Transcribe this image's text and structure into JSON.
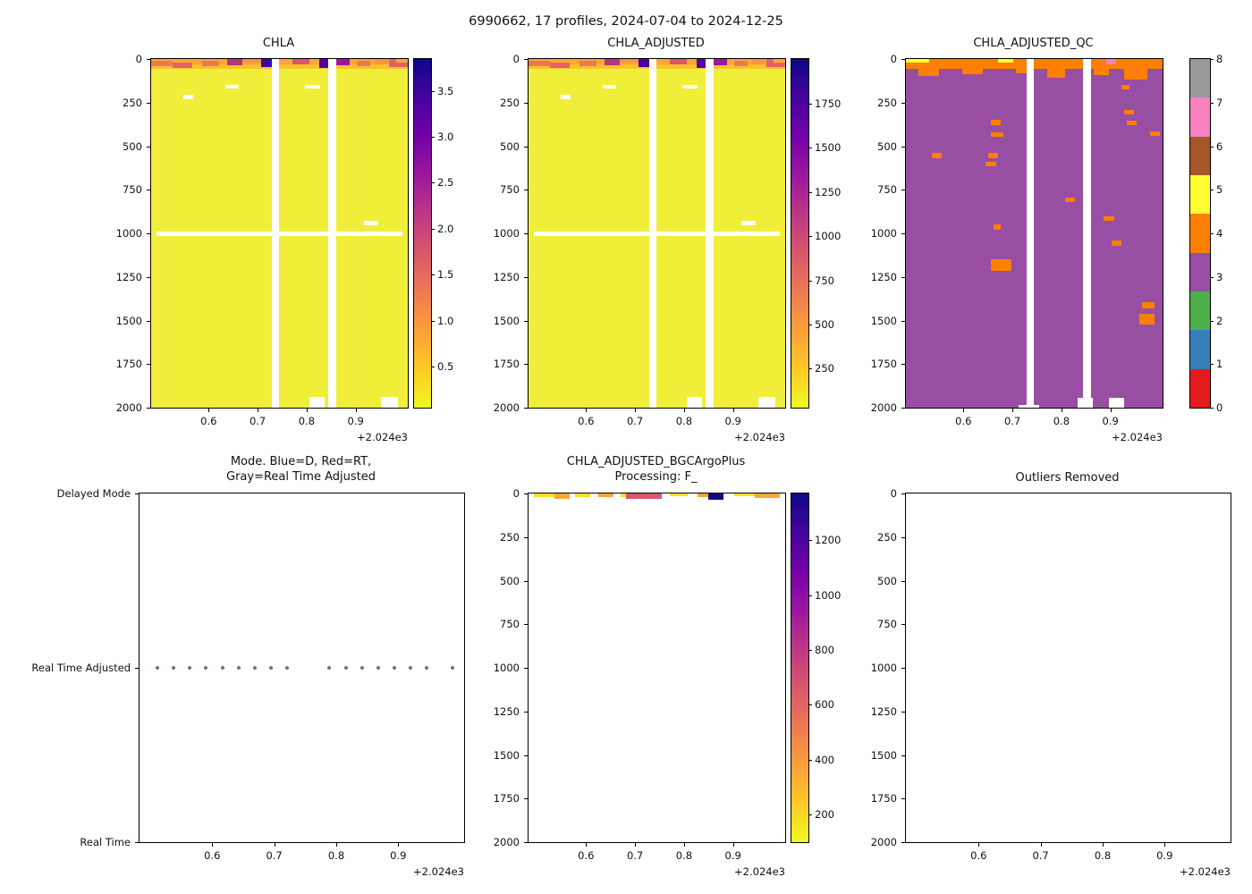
{
  "suptitle": "6990662, 17 profiles, 2024-07-04 to 2024-12-25",
  "chart_data": [
    {
      "id": "CHLA",
      "type": "heatmap",
      "title": "CHLA",
      "x_offset": "+2.024e3",
      "ylim": [
        0,
        2000
      ],
      "xlim_decimal_year": [
        2024.48,
        2025.01
      ],
      "x_ticks": [
        {
          "label": "0.6",
          "f": 0.224
        },
        {
          "label": "0.7",
          "f": 0.415
        },
        {
          "label": "0.8",
          "f": 0.606
        },
        {
          "label": "0.9",
          "f": 0.797
        }
      ],
      "y_ticks": [
        {
          "label": "0",
          "f": 0
        },
        {
          "label": "250",
          "f": 0.125
        },
        {
          "label": "500",
          "f": 0.25
        },
        {
          "label": "750",
          "f": 0.375
        },
        {
          "label": "1000",
          "f": 0.5
        },
        {
          "label": "1250",
          "f": 0.625
        },
        {
          "label": "1500",
          "f": 0.75
        },
        {
          "label": "1750",
          "f": 0.875
        },
        {
          "label": "2000",
          "f": 1
        }
      ],
      "colorbar": {
        "type": "gradient",
        "cmap": "plasma_r",
        "vmin": 0.05,
        "vmax": 3.85,
        "stops": [
          "#f0f921",
          "#fdca26",
          "#fb9f3a",
          "#ed7953",
          "#d8576b",
          "#bd3786",
          "#9c179e",
          "#7201a8",
          "#46039f",
          "#0d0887"
        ],
        "ticks": [
          {
            "label": "0.5",
            "f": 0.118
          },
          {
            "label": "1.0",
            "f": 0.25
          },
          {
            "label": "1.5",
            "f": 0.382
          },
          {
            "label": "2.0",
            "f": 0.513
          },
          {
            "label": "2.5",
            "f": 0.645
          },
          {
            "label": "3.0",
            "f": 0.776
          },
          {
            "label": "3.5",
            "f": 0.908
          }
        ]
      },
      "cells": [
        {
          "x0": 0,
          "x1": 1,
          "d0": 0,
          "d1": 2000,
          "c": "#f0ee38"
        },
        {
          "x0": 0,
          "x1": 1,
          "d0": 0,
          "d1": 28,
          "c": "#fca636"
        },
        {
          "x0": 0,
          "x1": 1,
          "d0": 28,
          "d1": 55,
          "c": "#fbc12c"
        },
        {
          "x0": 0.0,
          "x1": 0.085,
          "d0": 12,
          "d1": 42,
          "c": "#ed7953"
        },
        {
          "x0": 0.085,
          "x1": 0.16,
          "d0": 18,
          "d1": 52,
          "c": "#e16462"
        },
        {
          "x0": 0.2,
          "x1": 0.265,
          "d0": 8,
          "d1": 42,
          "c": "#ed7953"
        },
        {
          "x0": 0.295,
          "x1": 0.355,
          "d0": 0,
          "d1": 38,
          "c": "#b5367a"
        },
        {
          "x0": 0.355,
          "x1": 0.44,
          "d0": 0,
          "d1": 22,
          "c": "#f89441"
        },
        {
          "x0": 0.43,
          "x1": 0.47,
          "d0": 0,
          "d1": 45,
          "c": "#46039f"
        },
        {
          "x0": 0.55,
          "x1": 0.615,
          "d0": 0,
          "d1": 30,
          "c": "#d8576b"
        },
        {
          "x0": 0.655,
          "x1": 0.69,
          "d0": 0,
          "d1": 50,
          "c": "#5601a4"
        },
        {
          "x0": 0.72,
          "x1": 0.775,
          "d0": 0,
          "d1": 35,
          "c": "#9c179e"
        },
        {
          "x0": 0.8,
          "x1": 0.855,
          "d0": 8,
          "d1": 40,
          "c": "#ed7953"
        },
        {
          "x0": 0.87,
          "x1": 0.925,
          "d0": 0,
          "d1": 28,
          "c": "#f89441"
        },
        {
          "x0": 0.925,
          "x1": 1.0,
          "d0": 0,
          "d1": 45,
          "c": "#e16462"
        },
        {
          "x0": 0.955,
          "x1": 1.0,
          "d0": 0,
          "d1": 18,
          "c": "#fca636"
        },
        {
          "x0": 0.125,
          "x1": 0.165,
          "d0": 205,
          "d1": 228,
          "c": "#ffffff"
        },
        {
          "x0": 0.29,
          "x1": 0.34,
          "d0": 150,
          "d1": 170,
          "c": "#ffffff"
        },
        {
          "x0": 0.6,
          "x1": 0.66,
          "d0": 150,
          "d1": 170,
          "c": "#ffffff"
        },
        {
          "x0": 0.02,
          "x1": 0.98,
          "d0": 988,
          "d1": 1014,
          "c": "#ffffff"
        },
        {
          "x0": 0.83,
          "x1": 0.885,
          "d0": 930,
          "d1": 952,
          "c": "#ffffff"
        },
        {
          "x0": 0.615,
          "x1": 0.675,
          "d0": 1938,
          "d1": 2000,
          "c": "#ffffff"
        },
        {
          "x0": 0.895,
          "x1": 0.96,
          "d0": 1938,
          "d1": 2000,
          "c": "#ffffff"
        },
        {
          "x0": 0.47,
          "x1": 0.5,
          "d0": 0,
          "d1": 2000,
          "c": "#ffffff"
        },
        {
          "x0": 0.69,
          "x1": 0.72,
          "d0": 0,
          "d1": 2000,
          "c": "#ffffff"
        }
      ]
    },
    {
      "id": "CHLA_ADJUSTED",
      "type": "heatmap",
      "title": "CHLA_ADJUSTED",
      "x_offset": "+2.024e3",
      "ylim": [
        0,
        2000
      ],
      "cells_ref": 0,
      "x_ticks": [
        {
          "label": "0.6",
          "f": 0.224
        },
        {
          "label": "0.7",
          "f": 0.415
        },
        {
          "label": "0.8",
          "f": 0.606
        },
        {
          "label": "0.9",
          "f": 0.797
        }
      ],
      "y_ticks": [
        {
          "label": "0",
          "f": 0
        },
        {
          "label": "250",
          "f": 0.125
        },
        {
          "label": "500",
          "f": 0.25
        },
        {
          "label": "750",
          "f": 0.375
        },
        {
          "label": "1000",
          "f": 0.5
        },
        {
          "label": "1250",
          "f": 0.625
        },
        {
          "label": "1500",
          "f": 0.75
        },
        {
          "label": "1750",
          "f": 0.875
        },
        {
          "label": "2000",
          "f": 1
        }
      ],
      "colorbar": {
        "type": "gradient",
        "cmap": "plasma_r",
        "vmin": 30,
        "vmax": 2000,
        "stops": [
          "#f0f921",
          "#fdca26",
          "#fb9f3a",
          "#ed7953",
          "#d8576b",
          "#bd3786",
          "#9c179e",
          "#7201a8",
          "#46039f",
          "#0d0887"
        ],
        "ticks": [
          {
            "label": "250",
            "f": 0.112
          },
          {
            "label": "500",
            "f": 0.239
          },
          {
            "label": "750",
            "f": 0.365
          },
          {
            "label": "1000",
            "f": 0.492
          },
          {
            "label": "1250",
            "f": 0.619
          },
          {
            "label": "1500",
            "f": 0.746
          },
          {
            "label": "1750",
            "f": 0.873
          }
        ]
      }
    },
    {
      "id": "CHLA_ADJUSTED_QC",
      "type": "heatmap",
      "title": "CHLA_ADJUSTED_QC",
      "x_offset": "+2.024e3",
      "ylim": [
        0,
        2000
      ],
      "qc_flag_colors": {
        "3_probably_bad": "#984ea3",
        "4_bad": "#ff7f00",
        "5_changed": "#ffff33",
        "7": "#f781bf"
      },
      "x_ticks": [
        {
          "label": "0.6",
          "f": 0.224
        },
        {
          "label": "0.7",
          "f": 0.415
        },
        {
          "label": "0.8",
          "f": 0.606
        },
        {
          "label": "0.9",
          "f": 0.797
        }
      ],
      "y_ticks": [
        {
          "label": "0",
          "f": 0
        },
        {
          "label": "250",
          "f": 0.125
        },
        {
          "label": "500",
          "f": 0.25
        },
        {
          "label": "750",
          "f": 0.375
        },
        {
          "label": "1000",
          "f": 0.5
        },
        {
          "label": "1250",
          "f": 0.625
        },
        {
          "label": "1500",
          "f": 0.75
        },
        {
          "label": "1750",
          "f": 0.875
        },
        {
          "label": "2000",
          "f": 1
        }
      ],
      "colorbar": {
        "type": "discrete",
        "cmap": "Set1",
        "colors": [
          "#e41a1c",
          "#377eb8",
          "#4daf4a",
          "#984ea3",
          "#ff7f00",
          "#ffff33",
          "#a65628",
          "#f781bf",
          "#999999"
        ],
        "ticks": [
          {
            "label": "0",
            "f": 0
          },
          {
            "label": "1",
            "f": 0.125
          },
          {
            "label": "2",
            "f": 0.25
          },
          {
            "label": "3",
            "f": 0.375
          },
          {
            "label": "4",
            "f": 0.5
          },
          {
            "label": "5",
            "f": 0.625
          },
          {
            "label": "6",
            "f": 0.75
          },
          {
            "label": "7",
            "f": 0.875
          },
          {
            "label": "8",
            "f": 1
          }
        ]
      },
      "cells": [
        {
          "x0": 0,
          "x1": 1,
          "d0": 0,
          "d1": 2000,
          "c": "#984ea3"
        },
        {
          "x0": 0,
          "x1": 1,
          "d0": 0,
          "d1": 55,
          "c": "#ff7f00"
        },
        {
          "x0": 0.0,
          "x1": 0.09,
          "d0": 0,
          "d1": 22,
          "c": "#ffff33"
        },
        {
          "x0": 0.36,
          "x1": 0.42,
          "d0": 0,
          "d1": 18,
          "c": "#ffff33"
        },
        {
          "x0": 0.78,
          "x1": 0.82,
          "d0": 0,
          "d1": 28,
          "c": "#f781bf"
        },
        {
          "x0": 0.05,
          "x1": 0.13,
          "d0": 55,
          "d1": 100,
          "c": "#ff7f00"
        },
        {
          "x0": 0.22,
          "x1": 0.3,
          "d0": 55,
          "d1": 90,
          "c": "#ff7f00"
        },
        {
          "x0": 0.43,
          "x1": 0.47,
          "d0": 55,
          "d1": 85,
          "c": "#ff7f00"
        },
        {
          "x0": 0.55,
          "x1": 0.62,
          "d0": 55,
          "d1": 110,
          "c": "#ff7f00"
        },
        {
          "x0": 0.73,
          "x1": 0.79,
          "d0": 55,
          "d1": 95,
          "c": "#ff7f00"
        },
        {
          "x0": 0.85,
          "x1": 0.94,
          "d0": 55,
          "d1": 120,
          "c": "#ff7f00"
        },
        {
          "x0": 0.1,
          "x1": 0.14,
          "d0": 540,
          "d1": 570,
          "c": "#ff7f00"
        },
        {
          "x0": 0.33,
          "x1": 0.37,
          "d0": 350,
          "d1": 378,
          "c": "#ff7f00"
        },
        {
          "x0": 0.33,
          "x1": 0.38,
          "d0": 420,
          "d1": 448,
          "c": "#ff7f00"
        },
        {
          "x0": 0.32,
          "x1": 0.36,
          "d0": 540,
          "d1": 568,
          "c": "#ff7f00"
        },
        {
          "x0": 0.31,
          "x1": 0.35,
          "d0": 590,
          "d1": 615,
          "c": "#ff7f00"
        },
        {
          "x0": 0.34,
          "x1": 0.37,
          "d0": 950,
          "d1": 978,
          "c": "#ff7f00"
        },
        {
          "x0": 0.33,
          "x1": 0.41,
          "d0": 1150,
          "d1": 1215,
          "c": "#ff7f00"
        },
        {
          "x0": 0.62,
          "x1": 0.66,
          "d0": 795,
          "d1": 822,
          "c": "#ff7f00"
        },
        {
          "x0": 0.77,
          "x1": 0.81,
          "d0": 900,
          "d1": 928,
          "c": "#ff7f00"
        },
        {
          "x0": 0.85,
          "x1": 0.89,
          "d0": 290,
          "d1": 318,
          "c": "#ff7f00"
        },
        {
          "x0": 0.86,
          "x1": 0.9,
          "d0": 355,
          "d1": 382,
          "c": "#ff7f00"
        },
        {
          "x0": 0.84,
          "x1": 0.87,
          "d0": 150,
          "d1": 175,
          "c": "#ff7f00"
        },
        {
          "x0": 0.95,
          "x1": 0.99,
          "d0": 415,
          "d1": 442,
          "c": "#ff7f00"
        },
        {
          "x0": 0.8,
          "x1": 0.84,
          "d0": 1040,
          "d1": 1072,
          "c": "#ff7f00"
        },
        {
          "x0": 0.92,
          "x1": 0.97,
          "d0": 1395,
          "d1": 1432,
          "c": "#ff7f00"
        },
        {
          "x0": 0.91,
          "x1": 0.97,
          "d0": 1460,
          "d1": 1525,
          "c": "#ff7f00"
        },
        {
          "x0": 0.44,
          "x1": 0.52,
          "d0": 1985,
          "d1": 2000,
          "c": "#ffffff"
        },
        {
          "x0": 0.67,
          "x1": 0.73,
          "d0": 1945,
          "d1": 2000,
          "c": "#ffffff"
        },
        {
          "x0": 0.79,
          "x1": 0.85,
          "d0": 1945,
          "d1": 2000,
          "c": "#ffffff"
        },
        {
          "x0": 0.47,
          "x1": 0.5,
          "d0": 0,
          "d1": 2000,
          "c": "#ffffff"
        },
        {
          "x0": 0.69,
          "x1": 0.72,
          "d0": 0,
          "d1": 2000,
          "c": "#ffffff"
        }
      ]
    },
    {
      "id": "MODE",
      "type": "scatter",
      "title": "Mode. Blue=D, Red=RT,\nGray=Real Time Adjusted",
      "x_offset": "+2.024e3",
      "ylim": [
        0,
        1
      ],
      "y_categories": [
        "Real Time",
        "Real Time Adjusted",
        "Delayed Mode"
      ],
      "series": [
        {
          "name": "profile-mode",
          "value": "Real Time Adjusted",
          "count": 17
        }
      ],
      "x_ticks": [
        {
          "label": "0.6",
          "f": 0.224
        },
        {
          "label": "0.7",
          "f": 0.415
        },
        {
          "label": "0.8",
          "f": 0.606
        },
        {
          "label": "0.9",
          "f": 0.797
        }
      ],
      "y_ticks": [
        {
          "label": "Delayed Mode",
          "f": 0
        },
        {
          "label": "Real Time Adjusted",
          "f": 0.5
        },
        {
          "label": "Real Time",
          "f": 1
        }
      ],
      "dots": {
        "f": 0.5,
        "color": "#5b7b8c",
        "x": [
          0.055,
          0.105,
          0.155,
          0.205,
          0.255,
          0.305,
          0.355,
          0.405,
          0.455,
          0.585,
          0.635,
          0.685,
          0.735,
          0.785,
          0.835,
          0.885,
          0.965
        ]
      }
    },
    {
      "id": "CHLA_ADJUSTED_BGCArgoPlus",
      "type": "heatmap",
      "title": "CHLA_ADJUSTED_BGCArgoPlus\nProcessing: F_",
      "x_offset": "+2.024e3",
      "ylim": [
        0,
        2000
      ],
      "x_ticks": [
        {
          "label": "0.6",
          "f": 0.224
        },
        {
          "label": "0.7",
          "f": 0.415
        },
        {
          "label": "0.8",
          "f": 0.606
        },
        {
          "label": "0.9",
          "f": 0.797
        }
      ],
      "y_ticks": [
        {
          "label": "0",
          "f": 0
        },
        {
          "label": "250",
          "f": 0.125
        },
        {
          "label": "500",
          "f": 0.25
        },
        {
          "label": "750",
          "f": 0.375
        },
        {
          "label": "1000",
          "f": 0.5
        },
        {
          "label": "1250",
          "f": 0.625
        },
        {
          "label": "1500",
          "f": 0.75
        },
        {
          "label": "1750",
          "f": 0.875
        },
        {
          "label": "2000",
          "f": 1
        }
      ],
      "colorbar": {
        "type": "gradient",
        "cmap": "plasma_r",
        "vmin": 100,
        "vmax": 1370,
        "stops": [
          "#f0f921",
          "#fdca26",
          "#fb9f3a",
          "#ed7953",
          "#d8576b",
          "#bd3786",
          "#9c179e",
          "#7201a8",
          "#46039f",
          "#0d0887"
        ],
        "ticks": [
          {
            "label": "200",
            "f": 0.079
          },
          {
            "label": "400",
            "f": 0.236
          },
          {
            "label": "600",
            "f": 0.394
          },
          {
            "label": "800",
            "f": 0.551
          },
          {
            "label": "1000",
            "f": 0.709
          },
          {
            "label": "1200",
            "f": 0.866
          }
        ]
      },
      "cells": [
        {
          "x0": 0.02,
          "x1": 0.1,
          "d0": 0,
          "d1": 22,
          "c": "#f8df25"
        },
        {
          "x0": 0.1,
          "x1": 0.16,
          "d0": 0,
          "d1": 28,
          "c": "#fca636"
        },
        {
          "x0": 0.18,
          "x1": 0.24,
          "d0": 0,
          "d1": 18,
          "c": "#f8df25"
        },
        {
          "x0": 0.27,
          "x1": 0.33,
          "d0": 0,
          "d1": 22,
          "c": "#fca636"
        },
        {
          "x0": 0.36,
          "x1": 0.43,
          "d0": 0,
          "d1": 20,
          "c": "#f8df25"
        },
        {
          "x0": 0.38,
          "x1": 0.52,
          "d0": 0,
          "d1": 30,
          "c": "#d8576b"
        },
        {
          "x0": 0.55,
          "x1": 0.62,
          "d0": 0,
          "d1": 16,
          "c": "#f8df25"
        },
        {
          "x0": 0.66,
          "x1": 0.7,
          "d0": 0,
          "d1": 20,
          "c": "#fca636"
        },
        {
          "x0": 0.7,
          "x1": 0.76,
          "d0": 0,
          "d1": 34,
          "c": "#0d0887"
        },
        {
          "x0": 0.8,
          "x1": 0.88,
          "d0": 0,
          "d1": 14,
          "c": "#f8df25"
        },
        {
          "x0": 0.88,
          "x1": 0.98,
          "d0": 0,
          "d1": 24,
          "c": "#fca636"
        }
      ]
    },
    {
      "id": "OUTLIERS_REMOVED",
      "type": "heatmap",
      "title": "Outliers Removed",
      "x_offset": "+2.024e3",
      "ylim": [
        0,
        2000
      ],
      "cells": [],
      "x_ticks": [
        {
          "label": "0.6",
          "f": 0.224
        },
        {
          "label": "0.7",
          "f": 0.415
        },
        {
          "label": "0.8",
          "f": 0.606
        },
        {
          "label": "0.9",
          "f": 0.797
        }
      ],
      "y_ticks": [
        {
          "label": "0",
          "f": 0
        },
        {
          "label": "250",
          "f": 0.125
        },
        {
          "label": "500",
          "f": 0.25
        },
        {
          "label": "750",
          "f": 0.375
        },
        {
          "label": "1000",
          "f": 0.5
        },
        {
          "label": "1250",
          "f": 0.625
        },
        {
          "label": "1500",
          "f": 0.75
        },
        {
          "label": "1750",
          "f": 0.875
        },
        {
          "label": "2000",
          "f": 1
        }
      ]
    }
  ]
}
